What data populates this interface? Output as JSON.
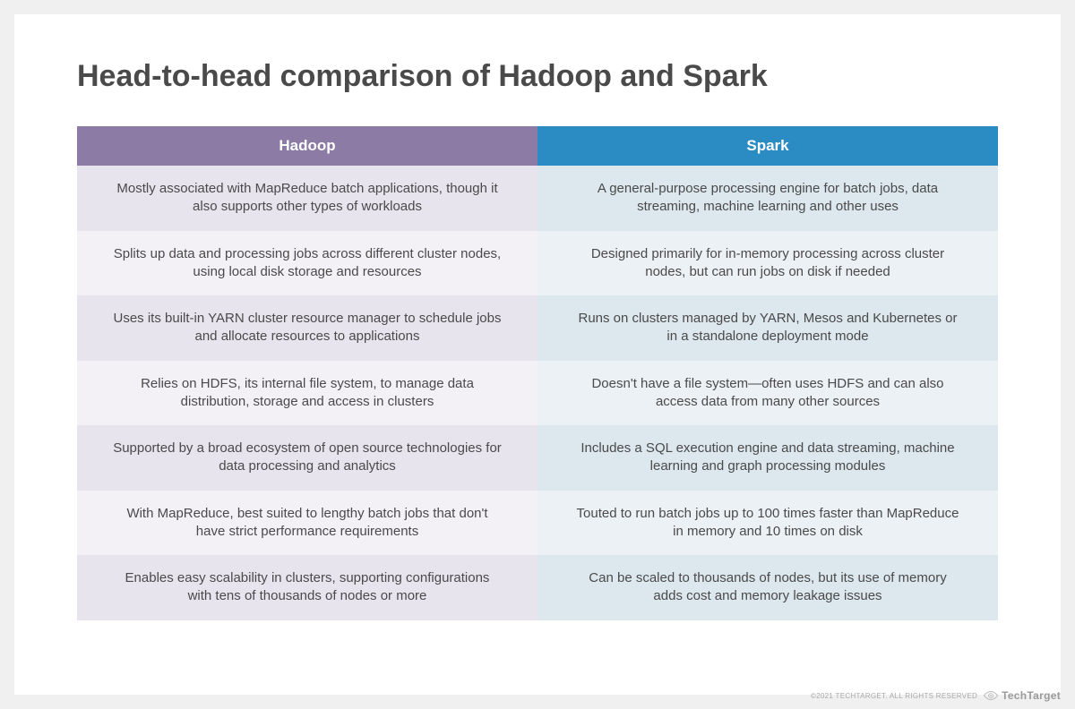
{
  "title": "Head-to-head comparison of Hadoop and Spark",
  "table": {
    "headers": {
      "col1": {
        "label": "Hadoop",
        "bg": "#8b7ba5"
      },
      "col2": {
        "label": "Spark",
        "bg": "#2b8cc4"
      }
    },
    "col1_colors": {
      "odd": "#e8e4ee",
      "even": "#f3f1f6"
    },
    "col2_colors": {
      "odd": "#dde7ee",
      "even": "#ecf1f5"
    },
    "rows": [
      {
        "col1": "Mostly associated with MapReduce batch applications, though it also supports other types of workloads",
        "col2": "A general-purpose processing engine for batch jobs, data streaming, machine learning and other uses"
      },
      {
        "col1": "Splits up data and processing jobs across different cluster nodes, using local disk storage and resources",
        "col2": "Designed primarily for in-memory processing across cluster nodes, but can run jobs on disk if needed"
      },
      {
        "col1": "Uses its built-in YARN cluster resource manager to schedule jobs and allocate resources to applications",
        "col2": "Runs on clusters managed by YARN, Mesos and Kubernetes or in a standalone deployment mode"
      },
      {
        "col1": "Relies on HDFS, its internal file system, to manage data distribution, storage and access in clusters",
        "col2": "Doesn't have a file system—often uses HDFS and can also access data from many other sources"
      },
      {
        "col1": "Supported by a broad ecosystem of open source technologies for data processing and analytics",
        "col2": "Includes a SQL execution engine and data streaming, machine learning and graph processing modules"
      },
      {
        "col1": "With MapReduce, best suited to lengthy batch jobs that don't have strict performance requirements",
        "col2": "Touted to run batch jobs up to 100 times faster than MapReduce in memory and 10 times on disk"
      },
      {
        "col1": "Enables easy scalability in clusters, supporting configurations with tens of thousands of nodes or more",
        "col2": "Can be scaled to thousands of nodes, but its use of memory adds cost and memory leakage issues"
      }
    ]
  },
  "footer": {
    "copyright": "©2021 TECHTARGET. ALL RIGHTS RESERVED",
    "logo_light": "Tech",
    "logo_bold": "Target"
  }
}
